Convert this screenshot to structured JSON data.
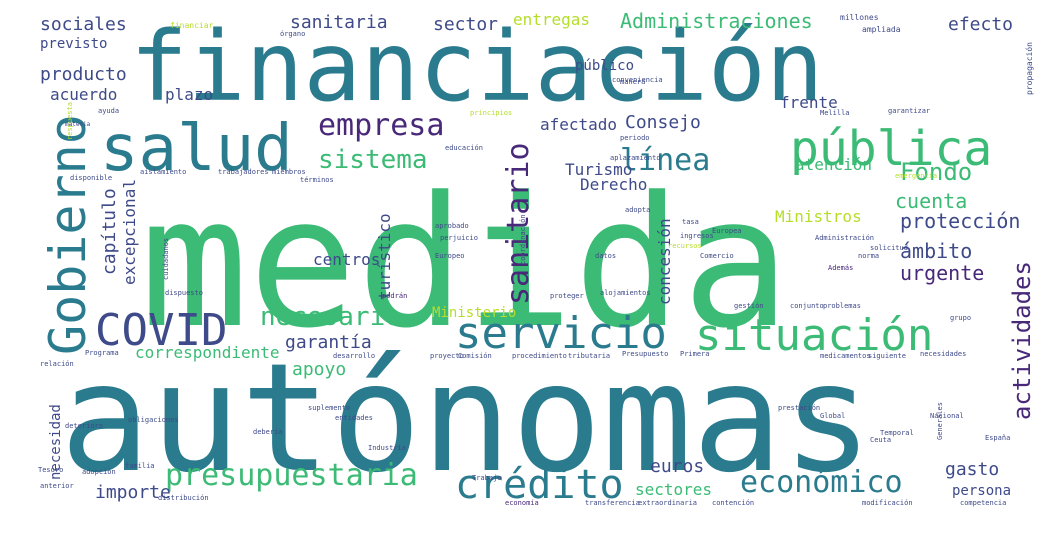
{
  "wordcloud": {
    "palette": {
      "teal": "#2a7b8e",
      "green": "#3bbb75",
      "lime": "#b5de2b",
      "purple": "#482878",
      "indigo": "#3e4a89",
      "mint": "#5ec962"
    },
    "words": [
      {
        "text": "financiación",
        "color": "#2a7b8e"
      },
      {
        "text": "medida",
        "color": "#3bbb75"
      },
      {
        "text": "autónomas",
        "color": "#2a7b8e"
      },
      {
        "text": "salud",
        "color": "#2a7b8e"
      },
      {
        "text": "pública",
        "color": "#3bbb75"
      },
      {
        "text": "Gobierno",
        "color": "#2a7b8e"
      },
      {
        "text": "COVID",
        "color": "#3e4a89"
      },
      {
        "text": "servicio",
        "color": "#2a7b8e"
      },
      {
        "text": "situación",
        "color": "#3bbb75"
      },
      {
        "text": "crédito",
        "color": "#2a7b8e"
      },
      {
        "text": "presupuestaria",
        "color": "#3bbb75"
      },
      {
        "text": "económico",
        "color": "#2a7b8e"
      },
      {
        "text": "empresa",
        "color": "#482878"
      },
      {
        "text": "sistema",
        "color": "#3bbb75"
      },
      {
        "text": "línea",
        "color": "#2a7b8e"
      },
      {
        "text": "sanitario",
        "color": "#482878"
      },
      {
        "text": "Administraciones",
        "color": "#3bbb75"
      },
      {
        "text": "necesario",
        "color": "#3bbb75"
      },
      {
        "text": "actividades",
        "color": "#482878"
      },
      {
        "text": "Fondo",
        "color": "#3bbb75"
      },
      {
        "text": "cuenta",
        "color": "#3bbb75"
      },
      {
        "text": "protección",
        "color": "#3e4a89"
      },
      {
        "text": "ámbito",
        "color": "#3e4a89"
      },
      {
        "text": "urgente",
        "color": "#482878"
      },
      {
        "text": "sociales",
        "color": "#3e4a89"
      },
      {
        "text": "sanitaria",
        "color": "#3e4a89"
      },
      {
        "text": "sector",
        "color": "#3e4a89"
      },
      {
        "text": "entregas",
        "color": "#b5de2b"
      },
      {
        "text": "efecto",
        "color": "#3e4a89"
      },
      {
        "text": "previsto",
        "color": "#3e4a89"
      },
      {
        "text": "producto",
        "color": "#3e4a89"
      },
      {
        "text": "acuerdo",
        "color": "#3e4a89"
      },
      {
        "text": "plazo",
        "color": "#3e4a89"
      },
      {
        "text": "Consejo",
        "color": "#3e4a89"
      },
      {
        "text": "frente",
        "color": "#3e4a89"
      },
      {
        "text": "público",
        "color": "#3e4a89"
      },
      {
        "text": "afectado",
        "color": "#3e4a89"
      },
      {
        "text": "atención",
        "color": "#3bbb75"
      },
      {
        "text": "Turismo",
        "color": "#3e4a89"
      },
      {
        "text": "Derecho",
        "color": "#3e4a89"
      },
      {
        "text": "Ministros",
        "color": "#b5de2b"
      },
      {
        "text": "capítulo",
        "color": "#3e4a89"
      },
      {
        "text": "excepcional",
        "color": "#3e4a89"
      },
      {
        "text": "turístico",
        "color": "#3e4a89"
      },
      {
        "text": "centros",
        "color": "#3e4a89"
      },
      {
        "text": "concesión",
        "color": "#3e4a89"
      },
      {
        "text": "Ministerio",
        "color": "#b5de2b"
      },
      {
        "text": "garantía",
        "color": "#3e4a89"
      },
      {
        "text": "apoyo",
        "color": "#3bbb75"
      },
      {
        "text": "correspondiente",
        "color": "#3bbb75"
      },
      {
        "text": "necesidad",
        "color": "#3e4a89"
      },
      {
        "text": "importe",
        "color": "#3e4a89"
      },
      {
        "text": "euros",
        "color": "#3e4a89"
      },
      {
        "text": "sectores",
        "color": "#3bbb75"
      },
      {
        "text": "gasto",
        "color": "#3e4a89"
      },
      {
        "text": "persona",
        "color": "#3e4a89"
      },
      {
        "text": "millones",
        "color": "#3e4a89"
      },
      {
        "text": "financiar",
        "color": "#b5de2b"
      },
      {
        "text": "ampliada",
        "color": "#3e4a89"
      },
      {
        "text": "propagación",
        "color": "#3e4a89"
      },
      {
        "text": "Melilla",
        "color": "#3e4a89"
      },
      {
        "text": "garantizar",
        "color": "#3e4a89"
      },
      {
        "text": "ayuda",
        "color": "#3e4a89"
      },
      {
        "text": "respuesta",
        "color": "#b5de2b"
      },
      {
        "text": "disponible",
        "color": "#3e4a89"
      },
      {
        "text": "aislamiento",
        "color": "#3e4a89"
      },
      {
        "text": "trabajadores",
        "color": "#3e4a89"
      },
      {
        "text": "miembros",
        "color": "#3e4a89"
      },
      {
        "text": "términos",
        "color": "#3e4a89"
      },
      {
        "text": "educación",
        "color": "#3e4a89"
      },
      {
        "text": "materia",
        "color": "#3e4a89"
      },
      {
        "text": "principios",
        "color": "#b5de2b"
      },
      {
        "text": "periodo",
        "color": "#3e4a89"
      },
      {
        "text": "aplazamiento",
        "color": "#3e4a89"
      },
      {
        "text": "conveniencia",
        "color": "#3e4a89"
      },
      {
        "text": "manera",
        "color": "#3e4a89"
      },
      {
        "text": "órgano",
        "color": "#3e4a89"
      },
      {
        "text": "emergencia",
        "color": "#b5de2b"
      },
      {
        "text": "aprobado",
        "color": "#3e4a89"
      },
      {
        "text": "perjuicio",
        "color": "#3e4a89"
      },
      {
        "text": "coordinación",
        "color": "#3e4a89"
      },
      {
        "text": "Europeo",
        "color": "#3e4a89"
      },
      {
        "text": "datos",
        "color": "#3e4a89"
      },
      {
        "text": "Comercio",
        "color": "#3e4a89"
      },
      {
        "text": "recursos",
        "color": "#b5de2b"
      },
      {
        "text": "ingresos",
        "color": "#3e4a89"
      },
      {
        "text": "tasa",
        "color": "#3e4a89"
      },
      {
        "text": "Europea",
        "color": "#3e4a89"
      },
      {
        "text": "adopta",
        "color": "#3e4a89"
      },
      {
        "text": "Administración",
        "color": "#3e4a89"
      },
      {
        "text": "solicitud",
        "color": "#3e4a89"
      },
      {
        "text": "Además",
        "color": "#482878"
      },
      {
        "text": "norma",
        "color": "#3e4a89"
      },
      {
        "text": "cuidadanos",
        "color": "#3e4a89"
      },
      {
        "text": "dispuesto",
        "color": "#3e4a89"
      },
      {
        "text": "podrán",
        "color": "#482878"
      },
      {
        "text": "alojamientos",
        "color": "#3e4a89"
      },
      {
        "text": "proteger",
        "color": "#3e4a89"
      },
      {
        "text": "gestión",
        "color": "#3e4a89"
      },
      {
        "text": "conjunto",
        "color": "#3e4a89"
      },
      {
        "text": "problemas",
        "color": "#3e4a89"
      },
      {
        "text": "grupo",
        "color": "#3e4a89"
      },
      {
        "text": "Programa",
        "color": "#3e4a89"
      },
      {
        "text": "desarrollo",
        "color": "#3e4a89"
      },
      {
        "text": "proyecto",
        "color": "#3e4a89"
      },
      {
        "text": "Comisión",
        "color": "#3e4a89"
      },
      {
        "text": "procedimiento",
        "color": "#3e4a89"
      },
      {
        "text": "tributaria",
        "color": "#3e4a89"
      },
      {
        "text": "Presupuesto",
        "color": "#3e4a89"
      },
      {
        "text": "Primera",
        "color": "#3e4a89"
      },
      {
        "text": "medicamentos",
        "color": "#3e4a89"
      },
      {
        "text": "siguiente",
        "color": "#3e4a89"
      },
      {
        "text": "necesidades",
        "color": "#3e4a89"
      },
      {
        "text": "relación",
        "color": "#3e4a89"
      },
      {
        "text": "deterioro",
        "color": "#3e4a89"
      },
      {
        "text": "obligaciones",
        "color": "#3e4a89"
      },
      {
        "text": "suplemento",
        "color": "#3e4a89"
      },
      {
        "text": "entidades",
        "color": "#3e4a89"
      },
      {
        "text": "prestación",
        "color": "#3e4a89"
      },
      {
        "text": "Global",
        "color": "#3e4a89"
      },
      {
        "text": "Nacional",
        "color": "#3e4a89"
      },
      {
        "text": "Generales",
        "color": "#3e4a89"
      },
      {
        "text": "debería",
        "color": "#3e4a89"
      },
      {
        "text": "Industria",
        "color": "#3e4a89"
      },
      {
        "text": "Temporal",
        "color": "#3e4a89"
      },
      {
        "text": "España",
        "color": "#3e4a89"
      },
      {
        "text": "familia",
        "color": "#3e4a89"
      },
      {
        "text": "Trabajo",
        "color": "#3e4a89"
      },
      {
        "text": "adopción",
        "color": "#3e4a89"
      },
      {
        "text": "anterior",
        "color": "#3e4a89"
      },
      {
        "text": "distribución",
        "color": "#3e4a89"
      },
      {
        "text": "economía",
        "color": "#482878"
      },
      {
        "text": "transferencia",
        "color": "#3e4a89"
      },
      {
        "text": "extraordinaria",
        "color": "#3e4a89"
      },
      {
        "text": "contención",
        "color": "#3e4a89"
      },
      {
        "text": "modificación",
        "color": "#3e4a89"
      },
      {
        "text": "competencia",
        "color": "#3e4a89"
      },
      {
        "text": "Ceuta",
        "color": "#3e4a89"
      },
      {
        "text": "Tesoro",
        "color": "#3e4a89"
      }
    ]
  }
}
